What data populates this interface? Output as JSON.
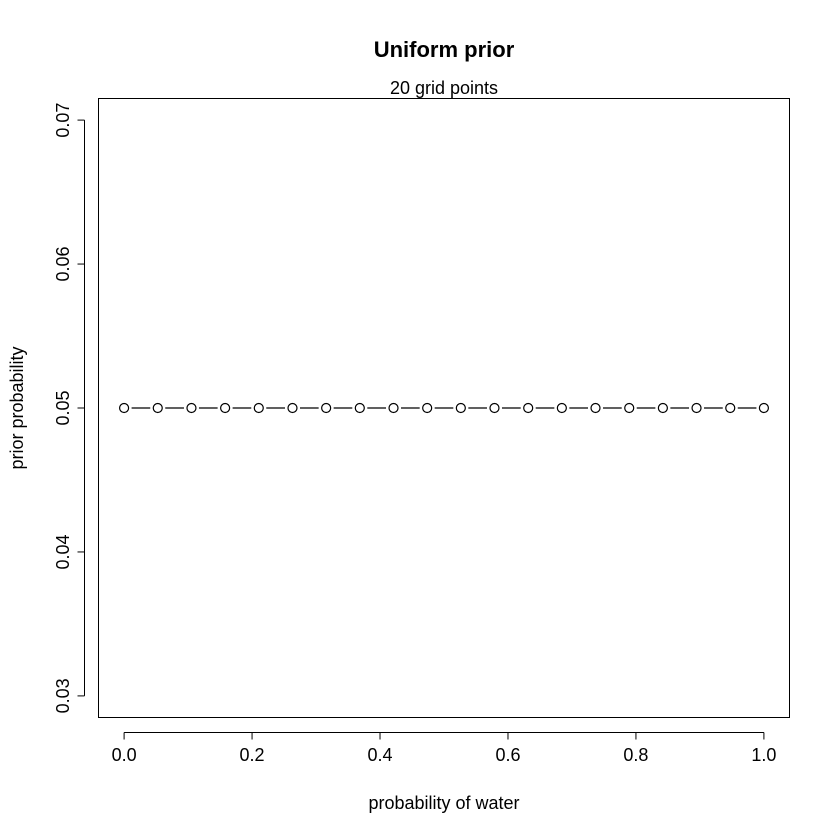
{
  "chart_data": {
    "type": "line",
    "title": "Uniform prior",
    "subtitle": "20 grid points",
    "xlabel": "probability of water",
    "ylabel": "prior probability",
    "xlim": [
      -0.04,
      1.04
    ],
    "ylim": [
      0.0285,
      0.0715
    ],
    "x_ticks": [
      0.0,
      0.2,
      0.4,
      0.6,
      0.8,
      1.0
    ],
    "x_tick_labels": [
      "0.0",
      "0.2",
      "0.4",
      "0.6",
      "0.8",
      "1.0"
    ],
    "y_ticks": [
      0.03,
      0.04,
      0.05,
      0.06,
      0.07
    ],
    "y_tick_labels": [
      "0.03",
      "0.04",
      "0.05",
      "0.06",
      "0.07"
    ],
    "grid": false,
    "line_style": "dashed",
    "marker": "open-circle",
    "series": [
      {
        "x": [
          0.0,
          0.0526,
          0.1053,
          0.1579,
          0.2105,
          0.2632,
          0.3158,
          0.3684,
          0.4211,
          0.4737,
          0.5263,
          0.5789,
          0.6316,
          0.6842,
          0.7368,
          0.7895,
          0.8421,
          0.8947,
          0.9474,
          1.0
        ],
        "values": [
          0.05,
          0.05,
          0.05,
          0.05,
          0.05,
          0.05,
          0.05,
          0.05,
          0.05,
          0.05,
          0.05,
          0.05,
          0.05,
          0.05,
          0.05,
          0.05,
          0.05,
          0.05,
          0.05,
          0.05
        ]
      }
    ]
  }
}
